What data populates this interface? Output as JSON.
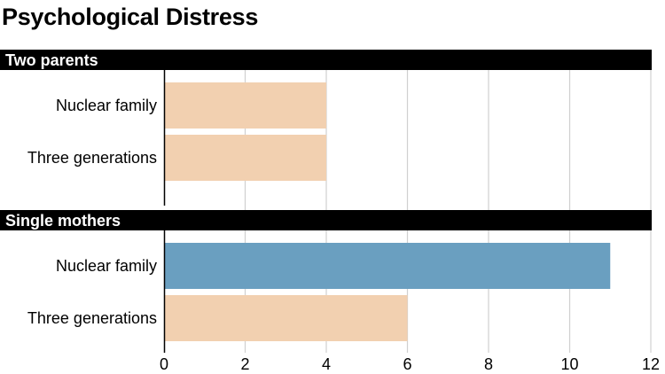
{
  "chart_data": {
    "type": "bar",
    "title": "Psychological Distress",
    "orientation": "horizontal",
    "xlim": [
      0,
      12
    ],
    "x_ticks": [
      "0",
      "2",
      "4",
      "6",
      "8",
      "10",
      "12"
    ],
    "grid": "vertical",
    "groups": [
      {
        "label": "Two parents",
        "bars": [
          {
            "label": "Nuclear family",
            "value": 4,
            "color": "#f2d0b0"
          },
          {
            "label": "Three generations",
            "value": 4,
            "color": "#f2d0b0"
          }
        ]
      },
      {
        "label": "Single mothers",
        "bars": [
          {
            "label": "Nuclear family",
            "value": 11,
            "color": "#6a9fc0"
          },
          {
            "label": "Three generations",
            "value": 6,
            "color": "#f2d0b0"
          }
        ]
      }
    ]
  },
  "colors": {
    "highlight": "#6a9fc0",
    "default_bar": "#f2d0b0",
    "header_band": "#000000",
    "grid": "#d0d0d0"
  }
}
